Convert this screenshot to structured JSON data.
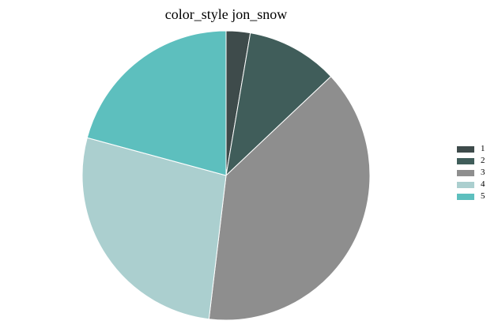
{
  "chart_data": {
    "type": "pie",
    "title": "color_style jon_snow",
    "categories": [
      "1",
      "2",
      "3",
      "4",
      "5"
    ],
    "values": [
      2.7,
      10.3,
      38.9,
      27.3,
      20.8
    ],
    "colors": [
      "#3e4b4b",
      "#405d5a",
      "#8e8e8e",
      "#abcfcf",
      "#5dbfbe"
    ],
    "legend": "right"
  }
}
